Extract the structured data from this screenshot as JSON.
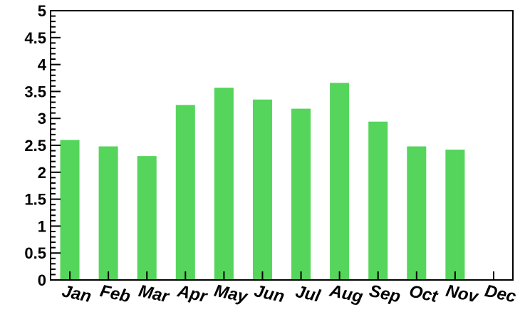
{
  "chart_data": {
    "type": "bar",
    "categories": [
      "Jan",
      "Feb",
      "Mar",
      "Apr",
      "May",
      "Jun",
      "Jul",
      "Aug",
      "Sep",
      "Oct",
      "Nov",
      "Dec"
    ],
    "series": [
      {
        "values": [
          2.6,
          2.48,
          2.3,
          3.25,
          3.57,
          3.35,
          3.18,
          3.66,
          2.94,
          2.48,
          2.42,
          0
        ],
        "color": "#55d55b"
      }
    ],
    "yticks": [
      "0",
      "0.5",
      "1",
      "1.5",
      "2",
      "2.5",
      "3",
      "3.5",
      "4",
      "4.5",
      "5"
    ],
    "ylim": [
      0,
      5
    ],
    "grid": false,
    "legend": "none"
  }
}
